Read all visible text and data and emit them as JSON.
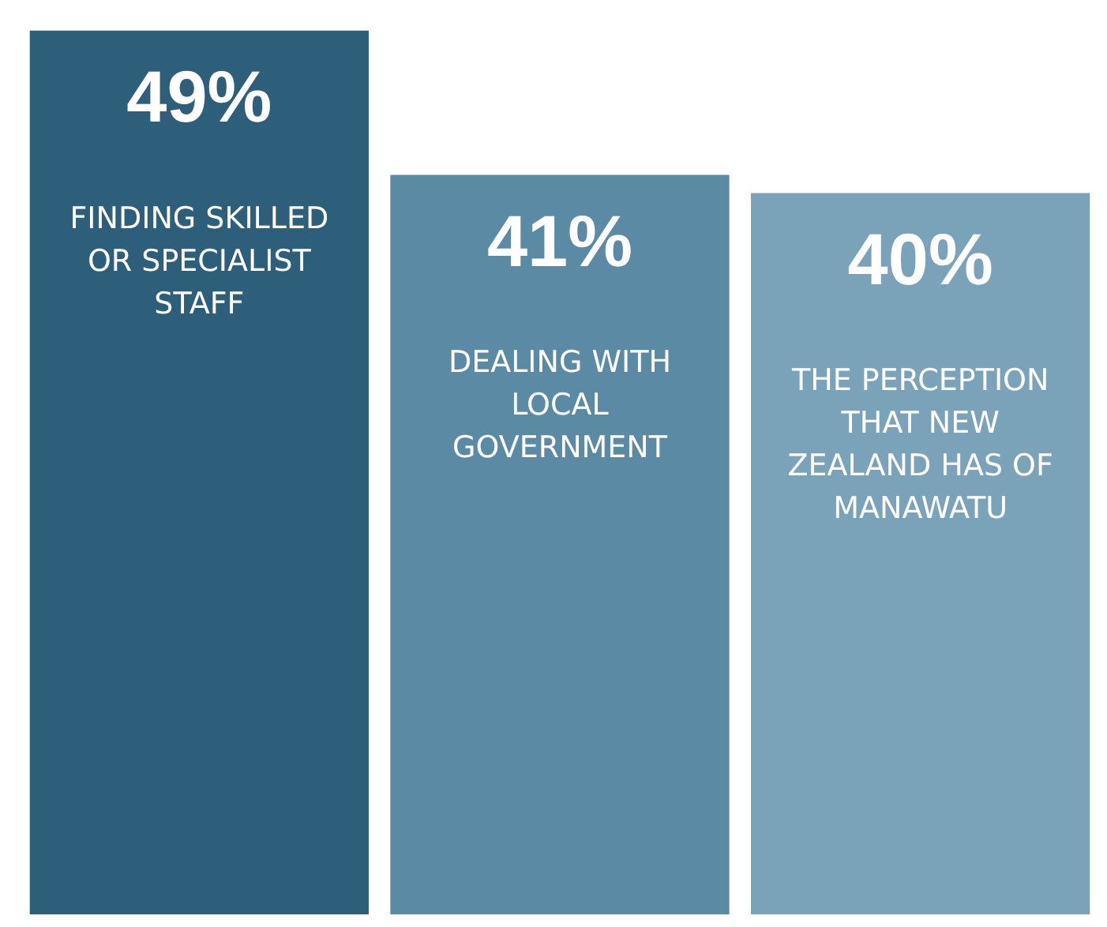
{
  "chart_data": {
    "type": "bar",
    "categories": [
      "FINDING SKILLED OR SPECIALIST STAFF",
      "DEALING WITH LOCAL GOVERNMENT",
      "THE PERCEPTION THAT NEW ZEALAND HAS OF MANAWATU"
    ],
    "values": [
      49,
      41,
      40
    ],
    "value_labels": [
      "49%",
      "41%",
      "40%"
    ],
    "colors": [
      "#2e5f7a",
      "#5a8aa4",
      "#7aa3b9"
    ],
    "tick_labels": false,
    "legend": false
  }
}
